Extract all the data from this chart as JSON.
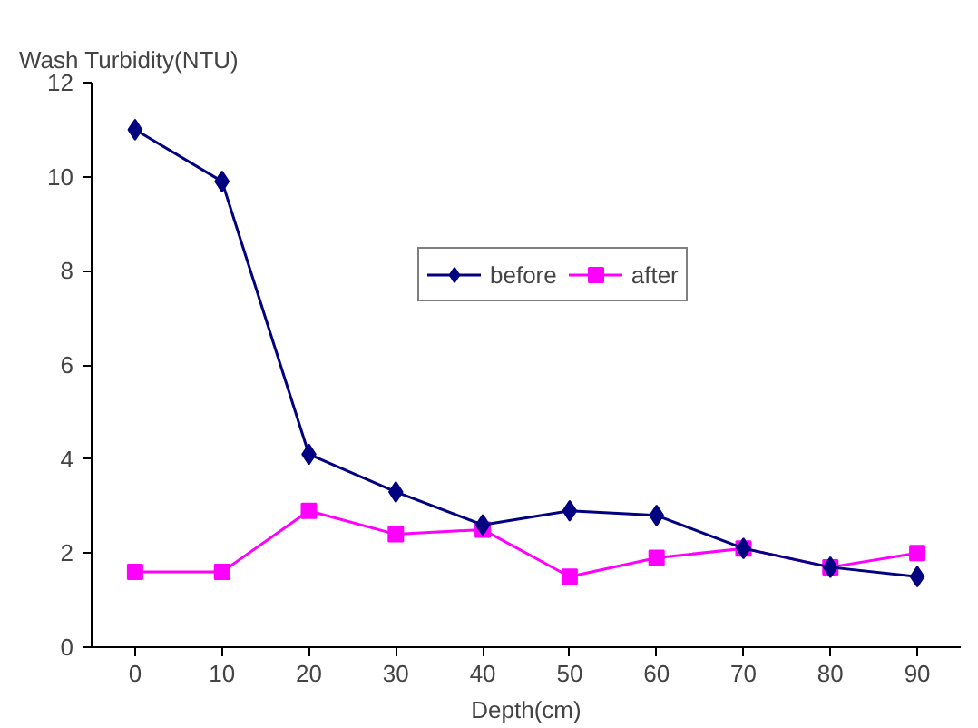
{
  "chart_data": {
    "type": "line",
    "ylabel": "Wash Turbidity(NTU)",
    "xlabel": "Depth(cm)",
    "categories": [
      "0",
      "10",
      "20",
      "30",
      "40",
      "50",
      "60",
      "70",
      "80",
      "90"
    ],
    "series": [
      {
        "name": "before",
        "color": "#000080",
        "marker": "diamond",
        "values": [
          11.0,
          9.9,
          4.1,
          3.3,
          2.6,
          2.9,
          2.8,
          2.1,
          1.7,
          1.5
        ]
      },
      {
        "name": "after",
        "color": "#ff00ff",
        "marker": "square",
        "values": [
          1.6,
          1.6,
          2.9,
          2.4,
          2.5,
          1.5,
          1.9,
          2.1,
          1.7,
          2.0
        ]
      }
    ],
    "ylim": [
      0,
      12
    ],
    "yticks": [
      0,
      2,
      4,
      6,
      8,
      10,
      12
    ],
    "grid": false,
    "legend": "top right"
  }
}
